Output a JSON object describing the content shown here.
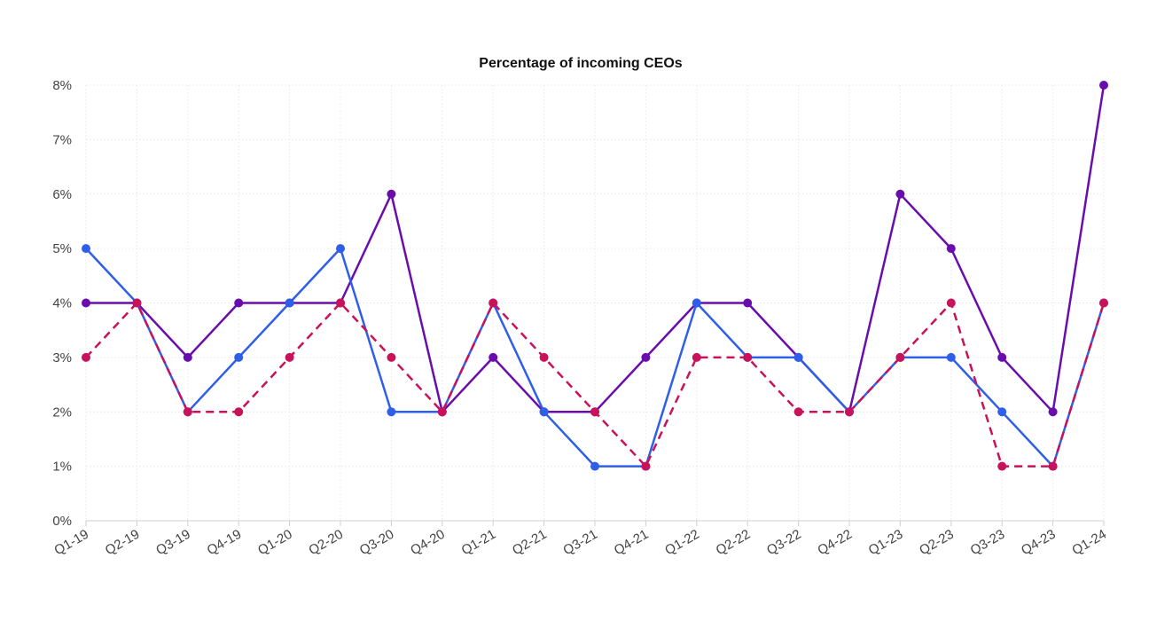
{
  "chart_data": {
    "type": "line",
    "title": "Percentage of incoming CEOs",
    "xlabel": "",
    "ylabel": "",
    "categories": [
      "Q1-19",
      "Q2-19",
      "Q3-19",
      "Q4-19",
      "Q1-20",
      "Q2-20",
      "Q3-20",
      "Q4-20",
      "Q1-21",
      "Q2-21",
      "Q3-21",
      "Q4-21",
      "Q1-22",
      "Q2-22",
      "Q3-22",
      "Q4-22",
      "Q1-23",
      "Q2-23",
      "Q3-23",
      "Q4-23",
      "Q1-24"
    ],
    "ylim": [
      0,
      8
    ],
    "yticks": [
      0,
      1,
      2,
      3,
      4,
      5,
      6,
      7,
      8
    ],
    "ytick_labels": [
      "0%",
      "1%",
      "2%",
      "3%",
      "4%",
      "5%",
      "6%",
      "7%",
      "8%"
    ],
    "grid": true,
    "legend": "none",
    "series": [
      {
        "color": "#6a0dad",
        "dashed": false,
        "values": [
          4,
          4,
          3,
          4,
          4,
          4,
          6,
          2,
          3,
          2,
          2,
          3,
          4,
          4,
          3,
          2,
          6,
          5,
          3,
          2,
          8
        ]
      },
      {
        "color": "#2f5fe8",
        "dashed": false,
        "values": [
          5,
          4,
          2,
          3,
          4,
          5,
          2,
          2,
          4,
          2,
          1,
          1,
          4,
          3,
          3,
          2,
          3,
          3,
          2,
          1,
          4
        ]
      },
      {
        "color": "#c8125a",
        "dashed": true,
        "values": [
          3,
          4,
          2,
          2,
          3,
          4,
          3,
          2,
          4,
          3,
          2,
          1,
          3,
          3,
          2,
          2,
          3,
          4,
          1,
          1,
          4
        ]
      }
    ]
  }
}
